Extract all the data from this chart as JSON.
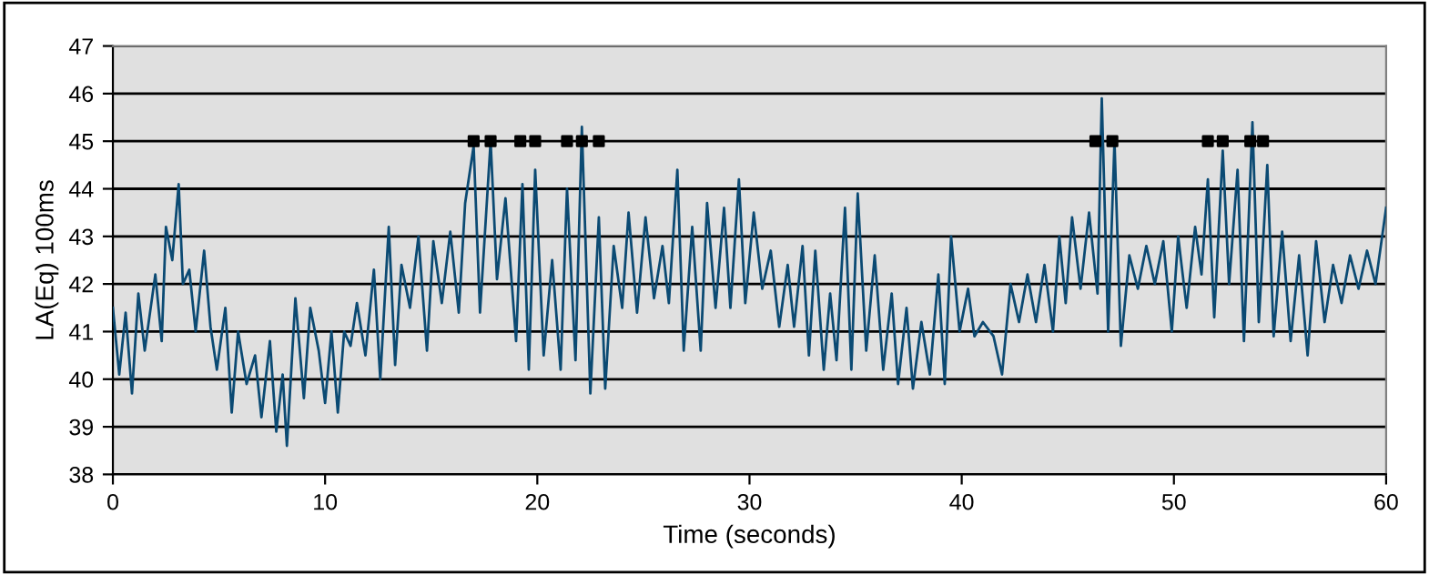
{
  "chart_data": {
    "type": "line",
    "xlabel": "Time (seconds)",
    "ylabel": "LA(Eq) 100ms",
    "xlim": [
      0,
      60
    ],
    "ylim": [
      38,
      47
    ],
    "xticks": [
      0,
      10,
      20,
      30,
      40,
      50,
      60
    ],
    "yticks": [
      38,
      39,
      40,
      41,
      42,
      43,
      44,
      45,
      46,
      47
    ],
    "grid": "y",
    "series": [
      {
        "color": "#0b4a73",
        "marker": "none",
        "x": [
          0,
          0.3,
          0.6,
          0.9,
          1.2,
          1.5,
          2.0,
          2.3,
          2.5,
          2.8,
          3.1,
          3.3,
          3.6,
          3.9,
          4.3,
          4.6,
          4.9,
          5.3,
          5.6,
          5.9,
          6.3,
          6.7,
          7.0,
          7.4,
          7.7,
          8.0,
          8.2,
          8.6,
          9.0,
          9.3,
          9.7,
          10.0,
          10.3,
          10.6,
          10.9,
          11.2,
          11.5,
          11.9,
          12.3,
          12.6,
          13.0,
          13.3,
          13.6,
          14.0,
          14.4,
          14.8,
          15.1,
          15.5,
          15.9,
          16.3,
          16.6,
          17.0,
          17.3,
          17.8,
          18.1,
          18.5,
          19.0,
          19.3,
          19.6,
          19.9,
          20.3,
          20.7,
          21.1,
          21.4,
          21.8,
          22.1,
          22.5,
          22.9,
          23.2,
          23.6,
          24.0,
          24.3,
          24.7,
          25.1,
          25.5,
          25.9,
          26.2,
          26.6,
          26.9,
          27.3,
          27.7,
          28.0,
          28.4,
          28.8,
          29.1,
          29.5,
          29.8,
          30.2,
          30.6,
          31.0,
          31.4,
          31.8,
          32.1,
          32.5,
          32.8,
          33.1,
          33.5,
          33.8,
          34.1,
          34.5,
          34.8,
          35.1,
          35.5,
          35.9,
          36.3,
          36.7,
          37.0,
          37.4,
          37.7,
          38.1,
          38.5,
          38.9,
          39.2,
          39.5,
          39.9,
          40.3,
          40.6,
          41.0,
          41.5,
          41.9,
          42.3,
          42.7,
          43.1,
          43.5,
          43.9,
          44.3,
          44.6,
          44.9,
          45.2,
          45.6,
          46.0,
          46.4,
          46.6,
          46.9,
          47.2,
          47.5,
          47.9,
          48.3,
          48.7,
          49.1,
          49.5,
          49.9,
          50.2,
          50.6,
          51.0,
          51.3,
          51.6,
          51.9,
          52.3,
          52.6,
          53.0,
          53.3,
          53.7,
          54.0,
          54.4,
          54.7,
          55.1,
          55.5,
          55.9,
          56.3,
          56.7,
          57.1,
          57.5,
          57.9,
          58.3,
          58.7,
          59.1,
          59.5,
          60.0
        ],
        "values": [
          41.5,
          40.1,
          41.4,
          39.7,
          41.8,
          40.6,
          42.2,
          40.8,
          43.2,
          42.5,
          44.1,
          42.0,
          42.3,
          41.0,
          42.7,
          41.1,
          40.2,
          41.5,
          39.3,
          41.0,
          39.9,
          40.5,
          39.2,
          40.8,
          38.9,
          40.1,
          38.6,
          41.7,
          39.6,
          41.5,
          40.6,
          39.5,
          41.0,
          39.3,
          41.0,
          40.7,
          41.6,
          40.5,
          42.3,
          40.0,
          43.2,
          40.3,
          42.4,
          41.5,
          43.0,
          40.6,
          42.9,
          41.6,
          43.1,
          41.4,
          43.7,
          44.9,
          41.4,
          45.0,
          42.1,
          43.8,
          40.8,
          44.1,
          40.2,
          44.4,
          40.5,
          42.5,
          40.2,
          44.0,
          40.4,
          45.3,
          39.7,
          43.4,
          39.8,
          42.8,
          41.5,
          43.5,
          41.4,
          43.4,
          41.7,
          42.8,
          41.6,
          44.4,
          40.6,
          43.2,
          40.6,
          43.7,
          41.5,
          43.6,
          41.5,
          44.2,
          41.6,
          43.5,
          41.9,
          42.7,
          41.1,
          42.4,
          41.1,
          42.8,
          40.5,
          42.7,
          40.2,
          41.8,
          40.4,
          43.6,
          40.2,
          43.9,
          40.6,
          42.6,
          40.2,
          41.8,
          39.9,
          41.5,
          39.8,
          41.2,
          40.1,
          42.2,
          39.9,
          43.0,
          41.0,
          41.9,
          40.9,
          41.2,
          40.9,
          40.1,
          42.0,
          41.2,
          42.2,
          41.2,
          42.4,
          41.0,
          43.0,
          41.6,
          43.4,
          41.9,
          43.5,
          41.8,
          45.9,
          41.0,
          45.0,
          40.7,
          42.6,
          41.9,
          42.8,
          42.0,
          42.9,
          41.0,
          43.0,
          41.5,
          43.2,
          42.2,
          44.2,
          41.3,
          44.8,
          42.0,
          44.4,
          40.8,
          45.4,
          41.2,
          44.5,
          40.9,
          43.1,
          40.8,
          42.6,
          40.5,
          42.9,
          41.2,
          42.4,
          41.6,
          42.6,
          41.9,
          42.7,
          42.0,
          43.6
        ]
      },
      {
        "type": "scatter",
        "color": "#000000",
        "marker": "square",
        "x": [
          17.0,
          17.8,
          19.2,
          19.9,
          21.4,
          22.1,
          22.9,
          46.3,
          47.1,
          51.6,
          52.3,
          53.6,
          54.2
        ],
        "values": [
          45,
          45,
          45,
          45,
          45,
          45,
          45,
          45,
          45,
          45,
          45,
          45,
          45
        ]
      }
    ]
  }
}
